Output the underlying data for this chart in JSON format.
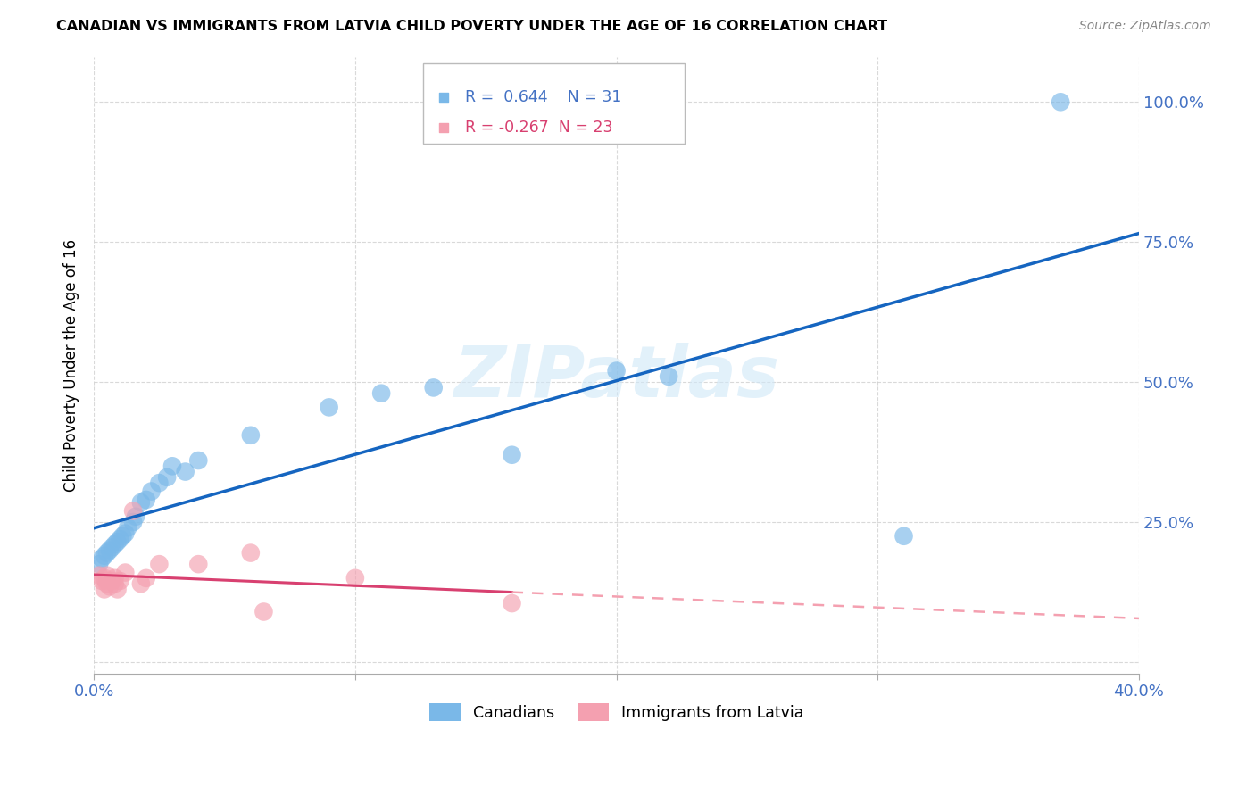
{
  "title": "CANADIAN VS IMMIGRANTS FROM LATVIA CHILD POVERTY UNDER THE AGE OF 16 CORRELATION CHART",
  "source": "Source: ZipAtlas.com",
  "tick_color": "#4472c4",
  "ylabel": "Child Poverty Under the Age of 16",
  "xlim": [
    0.0,
    0.4
  ],
  "ylim": [
    -0.02,
    1.08
  ],
  "xtick_vals": [
    0.0,
    0.1,
    0.2,
    0.3,
    0.4
  ],
  "xtick_labels": [
    "0.0%",
    "",
    "",
    "",
    "40.0%"
  ],
  "ytick_positions": [
    0.0,
    0.25,
    0.5,
    0.75,
    1.0
  ],
  "ytick_labels": [
    "",
    "25.0%",
    "50.0%",
    "75.0%",
    "100.0%"
  ],
  "canadians_x": [
    0.002,
    0.003,
    0.004,
    0.005,
    0.006,
    0.007,
    0.008,
    0.009,
    0.01,
    0.011,
    0.012,
    0.013,
    0.015,
    0.016,
    0.018,
    0.02,
    0.022,
    0.025,
    0.028,
    0.03,
    0.035,
    0.04,
    0.06,
    0.09,
    0.11,
    0.13,
    0.16,
    0.2,
    0.22,
    0.31,
    0.37
  ],
  "canadians_y": [
    0.175,
    0.185,
    0.19,
    0.195,
    0.2,
    0.205,
    0.21,
    0.215,
    0.22,
    0.225,
    0.23,
    0.24,
    0.25,
    0.26,
    0.285,
    0.29,
    0.305,
    0.32,
    0.33,
    0.35,
    0.34,
    0.36,
    0.405,
    0.455,
    0.48,
    0.49,
    0.37,
    0.52,
    0.51,
    0.225,
    1.0
  ],
  "latvians_x": [
    0.002,
    0.003,
    0.004,
    0.004,
    0.005,
    0.005,
    0.005,
    0.006,
    0.007,
    0.008,
    0.008,
    0.009,
    0.01,
    0.012,
    0.015,
    0.018,
    0.02,
    0.025,
    0.04,
    0.06,
    0.065,
    0.1,
    0.16
  ],
  "latvians_y": [
    0.155,
    0.145,
    0.13,
    0.15,
    0.14,
    0.145,
    0.155,
    0.135,
    0.145,
    0.14,
    0.15,
    0.13,
    0.145,
    0.16,
    0.27,
    0.14,
    0.15,
    0.175,
    0.175,
    0.195,
    0.09,
    0.15,
    0.105
  ],
  "canadian_color": "#7ab8e8",
  "latvian_color": "#f4a0b0",
  "canadian_line_color": "#1565c0",
  "latvian_line_solid_color": "#d84070",
  "latvian_line_dash_color": "#f4a0b0",
  "legend_r_canadian": "R =  0.644",
  "legend_n_canadian": "N = 31",
  "legend_r_latvian": "R = -0.267",
  "legend_n_latvian": "N = 23",
  "watermark": "ZIPatlas",
  "background_color": "#ffffff",
  "grid_color": "#d0d0d0"
}
